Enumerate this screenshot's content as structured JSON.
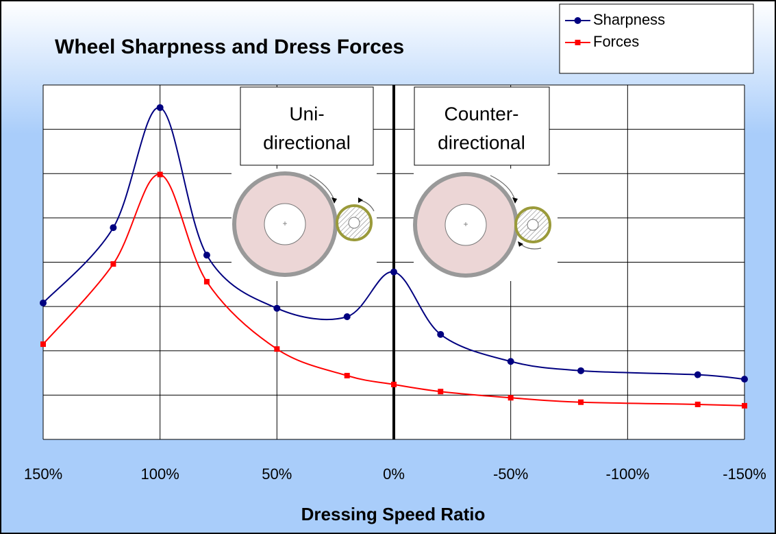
{
  "chart_data": {
    "type": "line",
    "title": "Wheel Sharpness and Dress Forces",
    "x_label": "Dressing Speed Ratio",
    "x": [
      150,
      120,
      100,
      80,
      50,
      20,
      0,
      -20,
      -50,
      -80,
      -130,
      -150
    ],
    "series": [
      {
        "name": "Sharpness",
        "color": "#000080",
        "marker": "circle",
        "values": [
          3.08,
          4.78,
          7.49,
          4.16,
          2.96,
          2.77,
          3.78,
          2.37,
          1.76,
          1.55,
          1.46,
          1.36
        ]
      },
      {
        "name": "Forces",
        "color": "#ff0000",
        "marker": "square",
        "values": [
          2.15,
          3.96,
          5.98,
          3.56,
          2.04,
          1.44,
          1.24,
          1.08,
          0.94,
          0.84,
          0.79,
          0.76
        ]
      }
    ],
    "xlim": [
      150,
      -150
    ],
    "xticks": [
      {
        "value": 150,
        "label": "150%"
      },
      {
        "value": 100,
        "label": "100%"
      },
      {
        "value": 50,
        "label": "50%"
      },
      {
        "value": 0,
        "label": "0%"
      },
      {
        "value": -50,
        "label": "-50%"
      },
      {
        "value": -100,
        "label": "-100%"
      },
      {
        "value": -150,
        "label": "-150%"
      }
    ],
    "ylim": [
      0,
      8
    ],
    "yticks": [
      0,
      1,
      2,
      3,
      4,
      5,
      6,
      7,
      8
    ],
    "grid": true,
    "reference_line_x": 0,
    "legend": "top-right",
    "annotations": [
      [
        "Uni-",
        "directional"
      ],
      [
        "Counter-",
        "directional"
      ]
    ]
  }
}
